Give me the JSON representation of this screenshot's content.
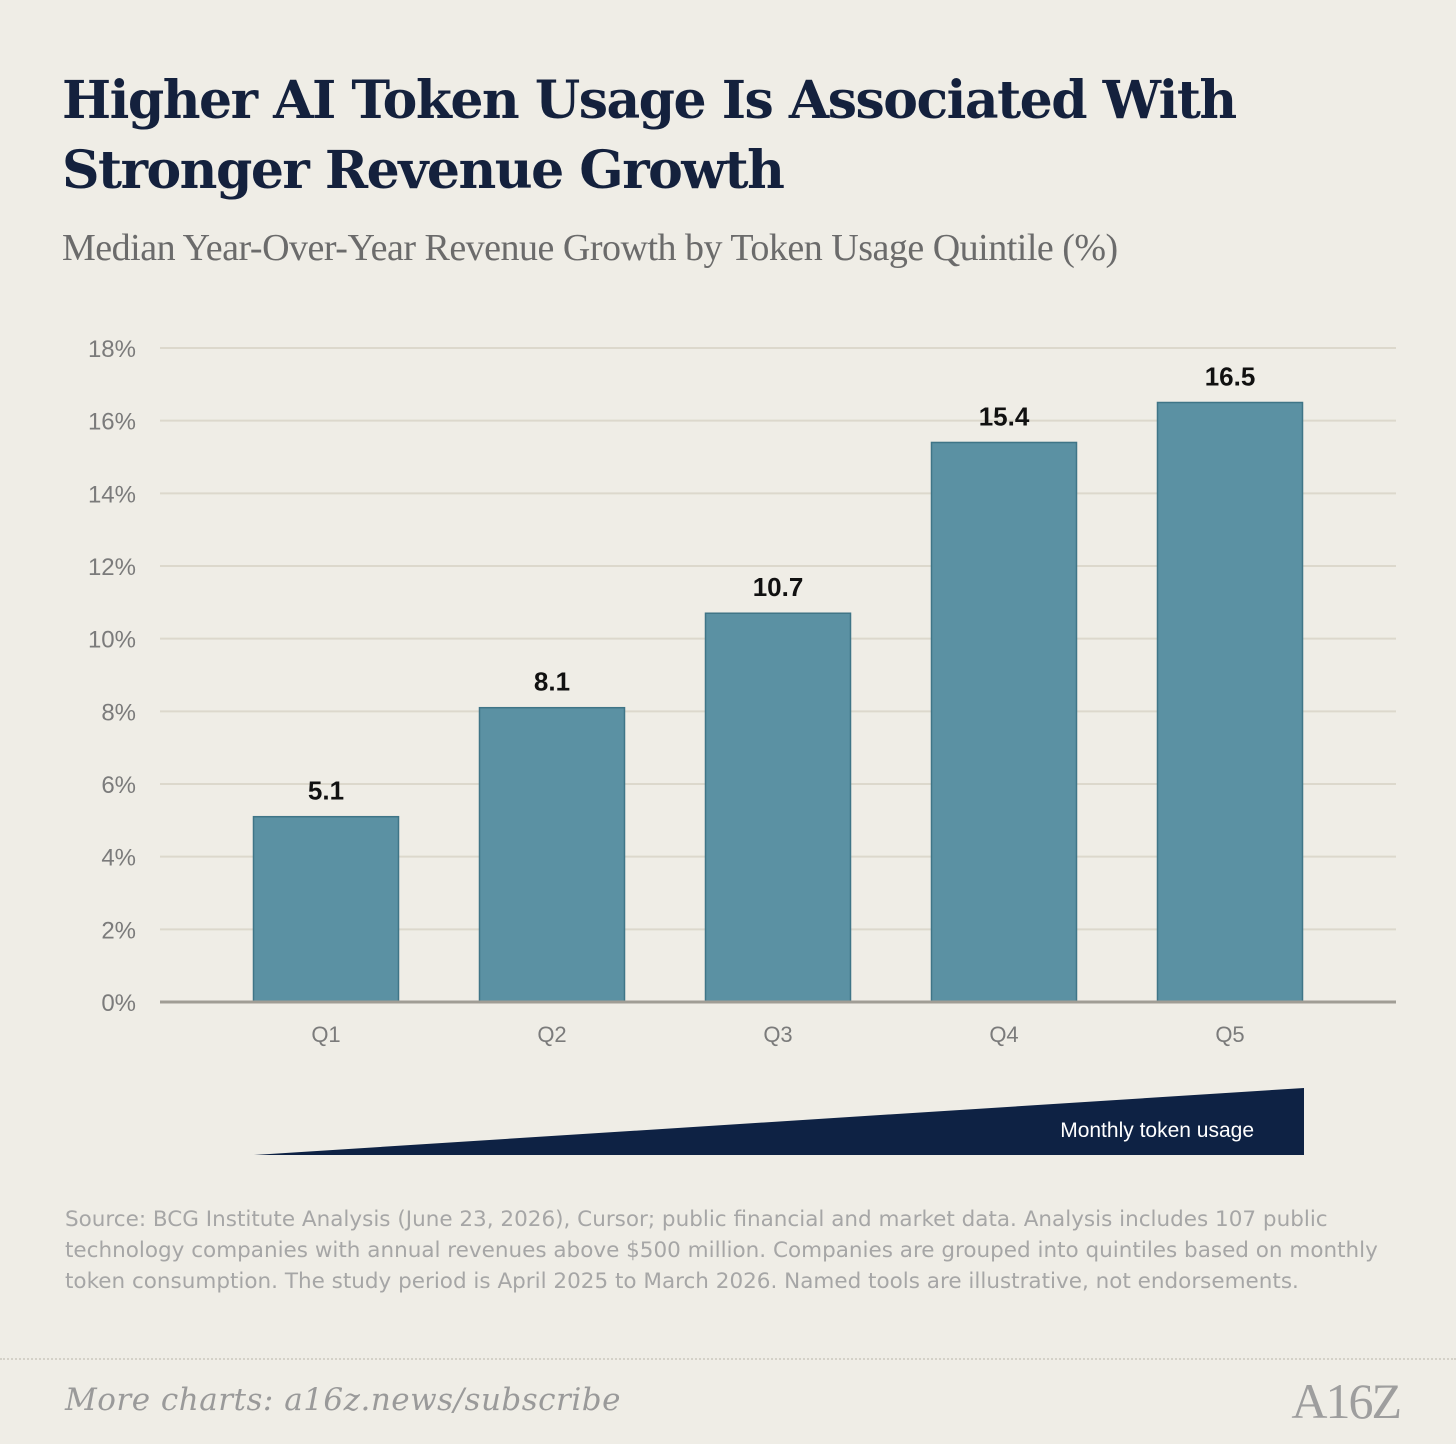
{
  "header": {
    "title": "Higher AI Token Usage Is Associated With Stronger Revenue Growth",
    "subtitle": "Median Year-Over-Year Revenue Growth by Token Usage Quintile (%)"
  },
  "chart_data": {
    "type": "bar",
    "title": "Higher AI Token Usage Is Associated With Stronger Revenue Growth",
    "subtitle": "Median Year-Over-Year Revenue Growth by Token Usage Quintile (%)",
    "categories": [
      "Q1",
      "Q2",
      "Q3",
      "Q4",
      "Q5"
    ],
    "values": [
      5.1,
      8.1,
      10.7,
      15.4,
      16.5
    ],
    "value_labels": [
      "5.1",
      "8.1",
      "10.7",
      "15.4",
      "16.5"
    ],
    "ylim": [
      0,
      18
    ],
    "yticks": [
      "0%",
      "2%",
      "4%",
      "6%",
      "8%",
      "10%",
      "12%",
      "14%",
      "16%",
      "18%"
    ],
    "grid": true,
    "legend": "none",
    "colors": {
      "bar": "#5b91a3",
      "bar_edge": "#3f7587",
      "grid": "#dcd8cc",
      "axis": "#a09d95"
    }
  },
  "usage_indicator": {
    "label": "Monthly token usage",
    "color": "#0e2244"
  },
  "source_note": "Source: BCG Institute Analysis (June 23, 2026), Cursor; public financial and market data. Analysis includes 107 public technology companies with annual revenues above $500 million. Companies are grouped into quintiles based on monthly token consumption. The study period is April 2025 to March 2026. Named tools are illustrative, not endorsements.",
  "footer": {
    "cta": "More charts: a16z.news/subscribe",
    "brand": "A16Z"
  }
}
